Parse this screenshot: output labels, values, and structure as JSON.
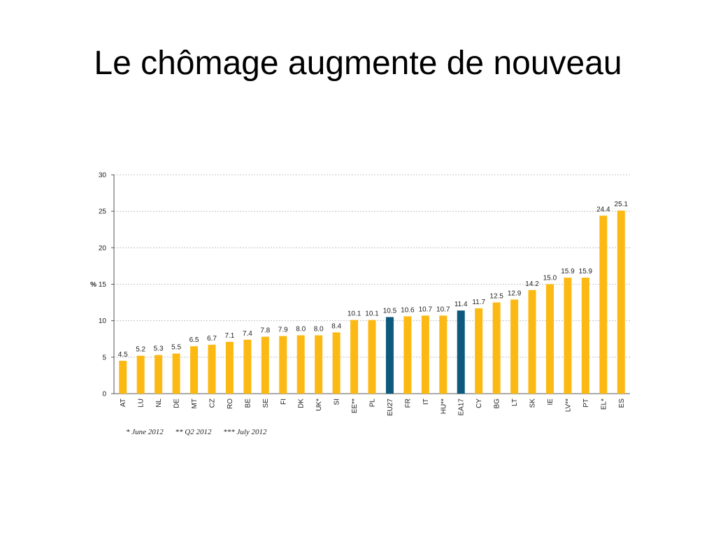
{
  "slide": {
    "title": "Le chômage augmente de nouveau"
  },
  "footnotes": [
    "* June 2012",
    "** Q2 2012",
    "*** July 2012"
  ],
  "chart_data": {
    "type": "bar",
    "ylabel": "%",
    "ylim": [
      0,
      30
    ],
    "yticks": [
      0,
      5,
      10,
      15,
      20,
      25,
      30
    ],
    "grid": true,
    "categories": [
      "AT",
      "LU",
      "NL",
      "DE",
      "MT",
      "CZ",
      "RO",
      "BE",
      "SE",
      "FI",
      "DK",
      "UK*",
      "SI",
      "EE**",
      "PL",
      "EU27",
      "FR",
      "IT",
      "HU**",
      "EA17",
      "CY",
      "BG",
      "LT",
      "SK",
      "IE",
      "LV**",
      "PT",
      "EL*",
      "ES"
    ],
    "values": [
      4.5,
      5.2,
      5.3,
      5.5,
      6.5,
      6.7,
      7.1,
      7.4,
      7.8,
      7.9,
      8.0,
      8.0,
      8.4,
      10.1,
      10.1,
      10.5,
      10.6,
      10.7,
      10.7,
      11.4,
      11.7,
      12.5,
      12.9,
      14.2,
      15.0,
      15.9,
      15.9,
      24.4,
      25.1
    ],
    "value_labels": [
      "4.5",
      "5.2",
      "5.3",
      "5.5",
      "6.5",
      "6.7",
      "7.1",
      "7.4",
      "7.8",
      "7.9",
      "8.0",
      "8.0",
      "8.4",
      "10.1",
      "10.1",
      "10.5",
      "10.6",
      "10.7",
      "10.7",
      "11.4",
      "11.7",
      "12.5",
      "12.9",
      "14.2",
      "15.0",
      "15.9",
      "15.9",
      "24.4",
      "25.1"
    ],
    "highlight": [
      "EU27",
      "EA17"
    ],
    "colors": {
      "bar": "#FDB913",
      "highlight": "#0E5A7E",
      "grid": "#B8B8B8",
      "axis": "#555555",
      "text": "#222222"
    }
  }
}
